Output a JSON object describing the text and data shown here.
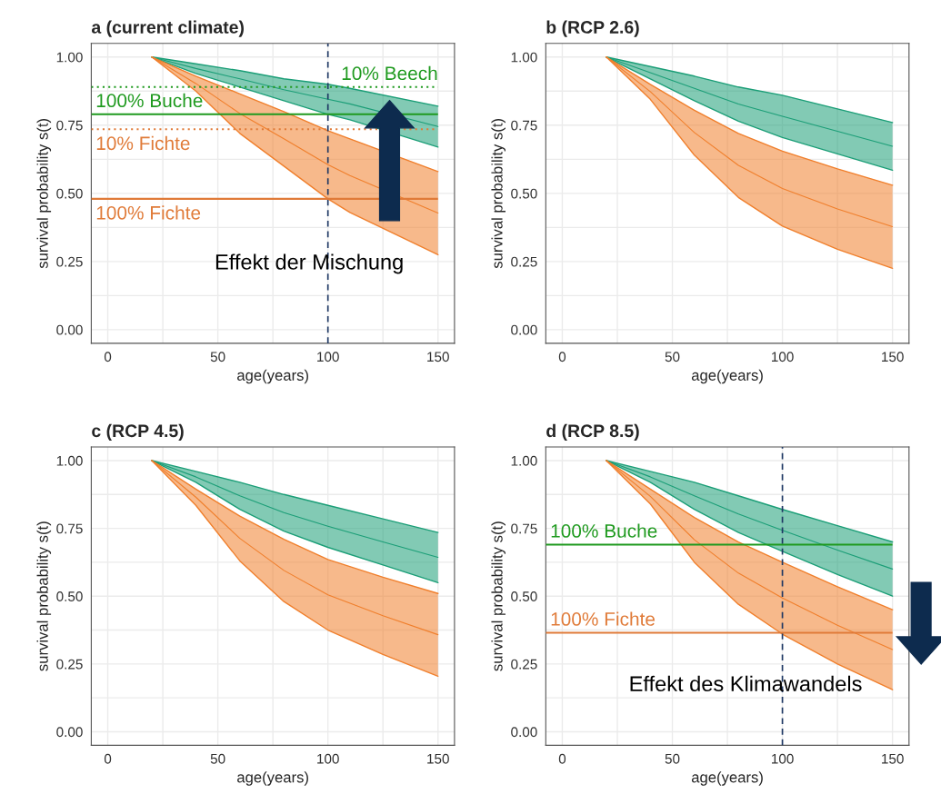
{
  "chart_data": [
    {
      "type": "line",
      "title": "a (current climate)",
      "xlabel": "age(years)",
      "ylabel": "survival probability s(t)",
      "x": [
        20,
        40,
        60,
        80,
        100,
        110,
        150
      ],
      "series": [
        {
          "color": "#1b9e77",
          "values": [
            1,
            0.958,
            0.92,
            0.88,
            0.845,
            0.828,
            0.745
          ],
          "lower": [
            1,
            0.94,
            0.89,
            0.84,
            0.79,
            0.77,
            0.67
          ],
          "upper": [
            1,
            0.975,
            0.95,
            0.92,
            0.9,
            0.885,
            0.82
          ]
        },
        {
          "color": "#f07f2c",
          "values": [
            1,
            0.903,
            0.793,
            0.7,
            0.605,
            0.565,
            0.428
          ],
          "lower": [
            1,
            0.875,
            0.72,
            0.6,
            0.48,
            0.43,
            0.275
          ],
          "upper": [
            1,
            0.93,
            0.865,
            0.8,
            0.73,
            0.7,
            0.58
          ]
        }
      ],
      "ref_lines": [
        {
          "axis": "x",
          "value": 100,
          "color": "#1f3864",
          "line_style": "dashed"
        },
        {
          "axis": "y",
          "value": 0.89,
          "label": "10% Beech",
          "color": "#1f9a1f",
          "line_style": "dotted"
        },
        {
          "axis": "y",
          "value": 0.79,
          "label": "100% Buche",
          "color": "#1f9a1f",
          "line_style": "solid"
        },
        {
          "axis": "y",
          "value": 0.735,
          "label": "10% Fichte",
          "color": "#e07b39",
          "line_style": "dotted"
        },
        {
          "axis": "y",
          "value": 0.48,
          "label": "100% Fichte",
          "color": "#e07b39",
          "line_style": "solid"
        }
      ],
      "annotations": [
        "Effekt der Mischung"
      ],
      "xlim": [
        -7.5,
        157.5
      ],
      "ylim": [
        -0.05,
        1.05
      ],
      "xticks": [
        0,
        {
          "value": 25,
          "label": null
        },
        50,
        {
          "value": 75,
          "label": null
        },
        100,
        {
          "value": 125,
          "label": null
        },
        150
      ],
      "yticks": [
        {
          "value": 0,
          "label": "0.00"
        },
        {
          "value": 0.125,
          "label": null
        },
        {
          "value": 0.25,
          "label": "0.25"
        },
        {
          "value": 0.375,
          "label": null
        },
        {
          "value": 0.5,
          "label": "0.50"
        },
        {
          "value": 0.625,
          "label": null
        },
        {
          "value": 0.75,
          "label": "0.75"
        },
        {
          "value": 0.875,
          "label": null
        },
        {
          "value": 1,
          "label": "1.00"
        }
      ],
      "grid": true
    },
    {
      "type": "line",
      "title": "b (RCP 2.6)",
      "xlabel": "age(years)",
      "ylabel": "survival probability s(t)",
      "x": [
        20,
        40,
        60,
        80,
        100,
        125,
        150
      ],
      "series": [
        {
          "color": "#1b9e77",
          "values": [
            1,
            0.943,
            0.885,
            0.828,
            0.783,
            0.728,
            0.673
          ],
          "lower": [
            1,
            0.92,
            0.84,
            0.765,
            0.705,
            0.645,
            0.585
          ],
          "upper": [
            1,
            0.965,
            0.93,
            0.89,
            0.86,
            0.81,
            0.76
          ]
        },
        {
          "color": "#f07f2c",
          "values": [
            1,
            0.873,
            0.723,
            0.603,
            0.518,
            0.443,
            0.378
          ],
          "lower": [
            1,
            0.845,
            0.64,
            0.485,
            0.38,
            0.295,
            0.225
          ],
          "upper": [
            1,
            0.9,
            0.805,
            0.72,
            0.655,
            0.59,
            0.53
          ]
        }
      ],
      "xlim": [
        -7.5,
        157.5
      ],
      "ylim": [
        -0.05,
        1.05
      ],
      "xticks": [
        0,
        {
          "value": 25,
          "label": null
        },
        50,
        {
          "value": 75,
          "label": null
        },
        100,
        {
          "value": 125,
          "label": null
        },
        150
      ],
      "yticks": [
        {
          "value": 0,
          "label": "0.00"
        },
        {
          "value": 0.125,
          "label": null
        },
        {
          "value": 0.25,
          "label": "0.25"
        },
        {
          "value": 0.375,
          "label": null
        },
        {
          "value": 0.5,
          "label": "0.50"
        },
        {
          "value": 0.625,
          "label": null
        },
        {
          "value": 0.75,
          "label": "0.75"
        },
        {
          "value": 0.875,
          "label": null
        },
        {
          "value": 1,
          "label": "1.00"
        }
      ],
      "grid": true
    },
    {
      "type": "line",
      "title": "c (RCP 4.5)",
      "xlabel": "age(years)",
      "ylabel": "survival probability s(t)",
      "x": [
        20,
        40,
        60,
        80,
        100,
        125,
        150
      ],
      "series": [
        {
          "color": "#1b9e77",
          "values": [
            1,
            0.94,
            0.87,
            0.808,
            0.758,
            0.7,
            0.643
          ],
          "lower": [
            1,
            0.92,
            0.82,
            0.74,
            0.68,
            0.615,
            0.55
          ],
          "upper": [
            1,
            0.96,
            0.92,
            0.875,
            0.835,
            0.785,
            0.735
          ]
        },
        {
          "color": "#f07f2c",
          "values": [
            1,
            0.865,
            0.713,
            0.595,
            0.505,
            0.428,
            0.358
          ],
          "lower": [
            1,
            0.835,
            0.63,
            0.48,
            0.375,
            0.285,
            0.205
          ],
          "upper": [
            1,
            0.895,
            0.795,
            0.71,
            0.635,
            0.57,
            0.51
          ]
        }
      ],
      "xlim": [
        -7.5,
        157.5
      ],
      "ylim": [
        -0.05,
        1.05
      ],
      "xticks": [
        0,
        {
          "value": 25,
          "label": null
        },
        50,
        {
          "value": 75,
          "label": null
        },
        100,
        {
          "value": 125,
          "label": null
        },
        150
      ],
      "yticks": [
        {
          "value": 0,
          "label": "0.00"
        },
        {
          "value": 0.125,
          "label": null
        },
        {
          "value": 0.25,
          "label": "0.25"
        },
        {
          "value": 0.375,
          "label": null
        },
        {
          "value": 0.5,
          "label": "0.50"
        },
        {
          "value": 0.625,
          "label": null
        },
        {
          "value": 0.75,
          "label": "0.75"
        },
        {
          "value": 0.875,
          "label": null
        },
        {
          "value": 1,
          "label": "1.00"
        }
      ],
      "grid": true
    },
    {
      "type": "line",
      "title": "d (RCP 8.5)",
      "xlabel": "age(years)",
      "ylabel": "survival probability s(t)",
      "x": [
        20,
        40,
        60,
        80,
        100,
        125,
        150
      ],
      "series": [
        {
          "color": "#1b9e77",
          "values": [
            1,
            0.94,
            0.87,
            0.803,
            0.743,
            0.67,
            0.6
          ],
          "lower": [
            1,
            0.92,
            0.82,
            0.735,
            0.665,
            0.58,
            0.5
          ],
          "upper": [
            1,
            0.96,
            0.92,
            0.87,
            0.82,
            0.76,
            0.7
          ]
        },
        {
          "color": "#f07f2c",
          "values": [
            1,
            0.868,
            0.708,
            0.585,
            0.493,
            0.393,
            0.303
          ],
          "lower": [
            1,
            0.84,
            0.625,
            0.47,
            0.36,
            0.25,
            0.155
          ],
          "upper": [
            1,
            0.895,
            0.79,
            0.7,
            0.625,
            0.535,
            0.45
          ]
        }
      ],
      "ref_lines": [
        {
          "axis": "x",
          "value": 100,
          "color": "#1f3864",
          "line_style": "dashed"
        },
        {
          "axis": "y",
          "value": 0.69,
          "label": "100% Buche",
          "color": "#1f9a1f",
          "line_style": "solid"
        },
        {
          "axis": "y",
          "value": 0.365,
          "label": "100% Fichte",
          "color": "#e07b39",
          "line_style": "solid"
        }
      ],
      "annotations": [
        "Effekt des Klimawandels"
      ],
      "xlim": [
        -7.5,
        157.5
      ],
      "ylim": [
        -0.05,
        1.05
      ],
      "xticks": [
        0,
        {
          "value": 25,
          "label": null
        },
        50,
        {
          "value": 75,
          "label": null
        },
        100,
        {
          "value": 125,
          "label": null
        },
        150
      ],
      "yticks": [
        {
          "value": 0,
          "label": "0.00"
        },
        {
          "value": 0.125,
          "label": null
        },
        {
          "value": 0.25,
          "label": "0.25"
        },
        {
          "value": 0.375,
          "label": null
        },
        {
          "value": 0.5,
          "label": "0.50"
        },
        {
          "value": 0.625,
          "label": null
        },
        {
          "value": 0.75,
          "label": "0.75"
        },
        {
          "value": 0.875,
          "label": null
        },
        {
          "value": 1,
          "label": "1.00"
        }
      ],
      "grid": true
    }
  ]
}
